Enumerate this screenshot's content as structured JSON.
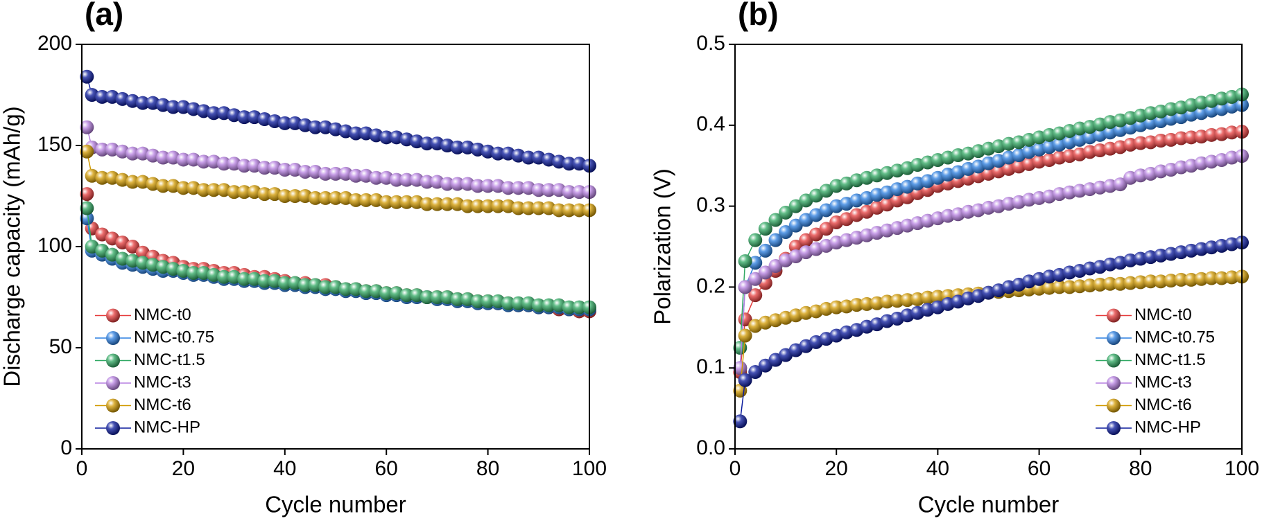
{
  "chart_data": [
    {
      "type": "line",
      "panel_label": "(a)",
      "x_label": "Cycle number",
      "y_label": "Discharge capacity (mAh/g)",
      "xlim": [
        0,
        100
      ],
      "xticks": [
        0,
        20,
        40,
        60,
        80,
        100
      ],
      "ylim": [
        0,
        200
      ],
      "yticks": [
        0,
        50,
        100,
        150,
        200
      ],
      "legend": "lower left",
      "x": [
        1,
        2,
        4,
        6,
        8,
        10,
        12,
        14,
        16,
        18,
        20,
        22,
        24,
        26,
        28,
        30,
        32,
        34,
        36,
        38,
        40,
        42,
        44,
        46,
        48,
        50,
        52,
        54,
        56,
        58,
        60,
        62,
        64,
        66,
        68,
        70,
        72,
        74,
        76,
        78,
        80,
        82,
        84,
        86,
        88,
        90,
        92,
        94,
        96,
        98,
        100
      ],
      "series": [
        {
          "name": "NMC-t0",
          "color": "#e63c3c",
          "values": [
            126,
            109,
            106,
            104,
            102,
            100,
            97,
            95,
            93,
            92,
            90,
            89,
            89,
            88,
            87,
            87,
            86,
            85,
            85,
            84,
            83,
            82,
            82,
            81,
            81,
            80,
            79,
            79,
            78,
            78,
            77,
            77,
            76,
            76,
            75,
            75,
            75,
            74,
            74,
            73,
            73,
            72,
            72,
            71,
            71,
            70,
            70,
            69,
            69,
            68,
            68
          ]
        },
        {
          "name": "NMC-t0.75",
          "color": "#2a7ee0",
          "values": [
            114,
            98,
            96,
            94,
            92,
            91,
            90,
            89,
            88,
            88,
            87,
            86,
            86,
            85,
            84,
            84,
            83,
            83,
            82,
            82,
            81,
            81,
            80,
            80,
            79,
            79,
            78,
            78,
            77,
            77,
            76,
            76,
            75,
            75,
            75,
            74,
            74,
            73,
            73,
            72,
            72,
            72,
            71,
            71,
            71,
            70,
            70,
            70,
            69,
            69,
            69
          ]
        },
        {
          "name": "NMC-t1.5",
          "color": "#2fa862",
          "values": [
            119,
            100,
            98,
            96,
            94,
            93,
            92,
            91,
            90,
            89,
            88,
            87,
            87,
            86,
            85,
            85,
            84,
            84,
            83,
            83,
            82,
            82,
            81,
            81,
            80,
            80,
            79,
            79,
            78,
            78,
            77,
            77,
            76,
            76,
            75,
            75,
            75,
            74,
            74,
            73,
            73,
            73,
            72,
            72,
            72,
            71,
            71,
            71,
            70,
            70,
            70
          ]
        },
        {
          "name": "NMC-t3",
          "color": "#b57fe0",
          "values": [
            159,
            149,
            148,
            148,
            147,
            146,
            146,
            145,
            144,
            144,
            143,
            143,
            142,
            142,
            141,
            141,
            140,
            140,
            139,
            139,
            138,
            138,
            137,
            137,
            136,
            136,
            136,
            135,
            135,
            134,
            134,
            133,
            133,
            133,
            132,
            132,
            131,
            131,
            131,
            130,
            130,
            130,
            129,
            129,
            129,
            128,
            128,
            128,
            127,
            127,
            127
          ]
        },
        {
          "name": "NMC-t6",
          "color": "#d19a00",
          "values": [
            147,
            135,
            134,
            134,
            133,
            132,
            132,
            131,
            130,
            130,
            129,
            129,
            128,
            128,
            128,
            127,
            127,
            127,
            126,
            126,
            125,
            125,
            125,
            124,
            124,
            124,
            124,
            123,
            123,
            123,
            122,
            122,
            122,
            122,
            121,
            121,
            121,
            121,
            120,
            120,
            120,
            120,
            120,
            119,
            119,
            119,
            119,
            118,
            118,
            118,
            118
          ]
        },
        {
          "name": "NMC-HP",
          "color": "#0a1a9c",
          "values": [
            184,
            175,
            174,
            174,
            173,
            172,
            171,
            171,
            170,
            169,
            169,
            168,
            167,
            166,
            166,
            165,
            164,
            164,
            163,
            162,
            161,
            161,
            160,
            159,
            159,
            158,
            157,
            156,
            156,
            155,
            154,
            154,
            153,
            152,
            151,
            151,
            150,
            149,
            149,
            148,
            147,
            146,
            146,
            145,
            144,
            144,
            143,
            142,
            141,
            141,
            140
          ]
        }
      ]
    },
    {
      "type": "line",
      "panel_label": "(b)",
      "x_label": "Cycle number",
      "y_label": "Polarization (V)",
      "xlim": [
        0,
        100
      ],
      "xticks": [
        0,
        20,
        40,
        60,
        80,
        100
      ],
      "ylim": [
        0,
        0.5
      ],
      "yticks": [
        {
          "value": 0,
          "label": "0.0"
        },
        0.1,
        0.2,
        0.3,
        0.4,
        0.5
      ],
      "legend": "lower right",
      "x": [
        1,
        2,
        4,
        6,
        8,
        10,
        12,
        14,
        16,
        18,
        20,
        22,
        24,
        26,
        28,
        30,
        32,
        34,
        36,
        38,
        40,
        42,
        44,
        46,
        48,
        50,
        52,
        54,
        56,
        58,
        60,
        62,
        64,
        66,
        68,
        70,
        72,
        74,
        76,
        78,
        80,
        82,
        84,
        86,
        88,
        90,
        92,
        94,
        96,
        98,
        100
      ],
      "series": [
        {
          "name": "NMC-t0",
          "color": "#e63c3c",
          "values": [
            0.095,
            0.16,
            0.19,
            0.205,
            0.22,
            0.235,
            0.25,
            0.258,
            0.265,
            0.272,
            0.28,
            0.284,
            0.289,
            0.293,
            0.298,
            0.302,
            0.307,
            0.311,
            0.316,
            0.32,
            0.325,
            0.328,
            0.331,
            0.334,
            0.337,
            0.34,
            0.343,
            0.346,
            0.349,
            0.352,
            0.355,
            0.357,
            0.36,
            0.362,
            0.364,
            0.367,
            0.369,
            0.371,
            0.373,
            0.376,
            0.378,
            0.379,
            0.381,
            0.382,
            0.384,
            0.385,
            0.386,
            0.388,
            0.389,
            0.391,
            0.392
          ]
        },
        {
          "name": "NMC-t0.75",
          "color": "#2a7ee0",
          "values": [
            0.1,
            0.2,
            0.23,
            0.245,
            0.258,
            0.268,
            0.276,
            0.283,
            0.289,
            0.295,
            0.3,
            0.303,
            0.307,
            0.31,
            0.314,
            0.317,
            0.321,
            0.324,
            0.328,
            0.331,
            0.335,
            0.339,
            0.342,
            0.346,
            0.349,
            0.353,
            0.356,
            0.36,
            0.363,
            0.367,
            0.37,
            0.373,
            0.376,
            0.379,
            0.382,
            0.385,
            0.388,
            0.391,
            0.394,
            0.397,
            0.4,
            0.403,
            0.405,
            0.408,
            0.41,
            0.413,
            0.415,
            0.418,
            0.42,
            0.423,
            0.425
          ]
        },
        {
          "name": "NMC-t1.5",
          "color": "#2fa862",
          "values": [
            0.125,
            0.232,
            0.258,
            0.272,
            0.283,
            0.292,
            0.3,
            0.307,
            0.313,
            0.319,
            0.325,
            0.328,
            0.332,
            0.335,
            0.338,
            0.341,
            0.344,
            0.347,
            0.351,
            0.354,
            0.357,
            0.36,
            0.363,
            0.365,
            0.368,
            0.371,
            0.374,
            0.377,
            0.379,
            0.382,
            0.385,
            0.388,
            0.39,
            0.393,
            0.396,
            0.398,
            0.401,
            0.404,
            0.406,
            0.409,
            0.412,
            0.415,
            0.417,
            0.42,
            0.422,
            0.425,
            0.428,
            0.43,
            0.433,
            0.435,
            0.438
          ]
        },
        {
          "name": "NMC-t3",
          "color": "#b57fe0",
          "values": [
            0.1,
            0.2,
            0.21,
            0.218,
            0.226,
            0.233,
            0.238,
            0.243,
            0.247,
            0.251,
            0.255,
            0.258,
            0.261,
            0.264,
            0.267,
            0.27,
            0.273,
            0.276,
            0.279,
            0.282,
            0.285,
            0.288,
            0.29,
            0.293,
            0.295,
            0.298,
            0.3,
            0.303,
            0.305,
            0.308,
            0.31,
            0.312,
            0.315,
            0.317,
            0.319,
            0.321,
            0.323,
            0.325,
            0.327,
            0.335,
            0.338,
            0.34,
            0.343,
            0.345,
            0.348,
            0.35,
            0.353,
            0.355,
            0.357,
            0.36,
            0.362
          ]
        },
        {
          "name": "NMC-t6",
          "color": "#d19a00",
          "values": [
            0.072,
            0.14,
            0.152,
            0.156,
            0.159,
            0.162,
            0.165,
            0.168,
            0.17,
            0.173,
            0.175,
            0.176,
            0.178,
            0.179,
            0.18,
            0.182,
            0.183,
            0.184,
            0.185,
            0.187,
            0.188,
            0.189,
            0.19,
            0.191,
            0.192,
            0.193,
            0.194,
            0.195,
            0.196,
            0.197,
            0.198,
            0.199,
            0.2,
            0.2,
            0.201,
            0.202,
            0.203,
            0.204,
            0.204,
            0.205,
            0.206,
            0.207,
            0.207,
            0.208,
            0.209,
            0.209,
            0.21,
            0.211,
            0.211,
            0.212,
            0.213
          ]
        },
        {
          "name": "NMC-HP",
          "color": "#0a1a9c",
          "values": [
            0.034,
            0.085,
            0.095,
            0.103,
            0.11,
            0.116,
            0.122,
            0.127,
            0.132,
            0.136,
            0.14,
            0.144,
            0.147,
            0.151,
            0.154,
            0.158,
            0.161,
            0.165,
            0.168,
            0.172,
            0.175,
            0.179,
            0.182,
            0.186,
            0.189,
            0.193,
            0.196,
            0.2,
            0.203,
            0.207,
            0.21,
            0.213,
            0.215,
            0.218,
            0.22,
            0.223,
            0.225,
            0.228,
            0.23,
            0.233,
            0.235,
            0.237,
            0.239,
            0.241,
            0.243,
            0.245,
            0.247,
            0.249,
            0.251,
            0.253,
            0.255
          ]
        }
      ]
    }
  ]
}
